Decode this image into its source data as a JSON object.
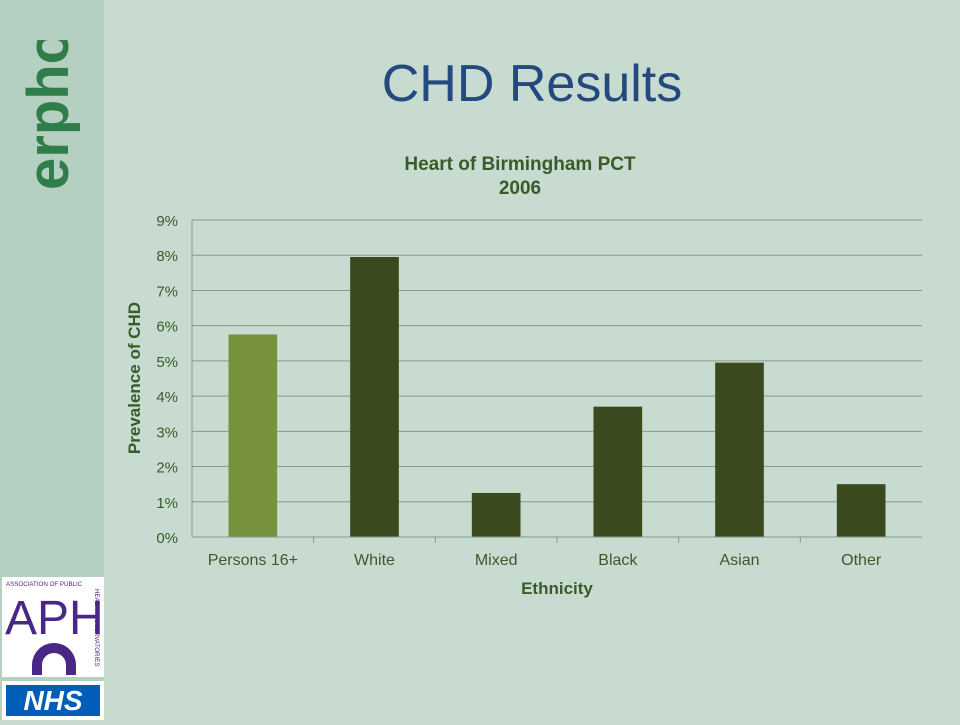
{
  "slide": {
    "title": "CHD Results",
    "brand": "erpho",
    "aph_logo": {
      "heading": "ASSOCIATION OF PUBLIC",
      "side": "HEALTH OBSERVATORIES",
      "mark": "APHO"
    },
    "nhs_logo": "NHS"
  },
  "colors": {
    "background": "#c8dbd0",
    "sidebar": "#b5cfc0",
    "title": "#23497e",
    "chart_text": "#3a5a2a",
    "bar_highlight": "#76923c",
    "bar_default": "#3b4a1e",
    "aph_purple": "#4a2785",
    "nhs_blue": "#005eb8"
  },
  "chart_data": {
    "type": "bar",
    "title": "Heart of Birmingham PCT",
    "subtitle": "2006",
    "xlabel": "Ethnicity",
    "ylabel": "Prevalence of CHD",
    "categories": [
      "Persons 16+",
      "White",
      "Mixed",
      "Black",
      "Asian",
      "Other"
    ],
    "values": [
      5.75,
      7.95,
      1.25,
      3.7,
      4.95,
      1.5
    ],
    "highlight_index": 0,
    "ylim": [
      0,
      9
    ],
    "yticks": [
      0,
      1,
      2,
      3,
      4,
      5,
      6,
      7,
      8,
      9
    ],
    "ytick_suffix": "%",
    "grid": true,
    "legend": "none"
  }
}
